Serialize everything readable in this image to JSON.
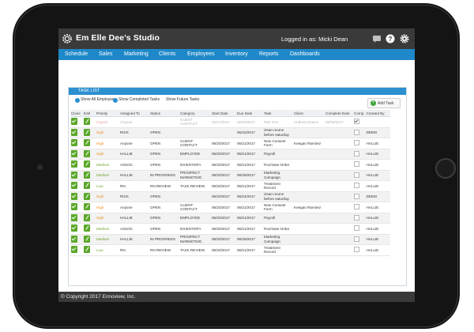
{
  "app": {
    "title": "Em Elle Dee's Studio",
    "logged_in_label": "Logged in as: Micki Dean"
  },
  "nav": [
    "Schedule",
    "Sales",
    "Marketing",
    "Clients",
    "Employees",
    "Inventory",
    "Reports",
    "Dashboards"
  ],
  "panel": {
    "title": "TASK LIST",
    "options": [
      "Show All Employees",
      "Show Completed Tasks",
      "Show Future Tasks"
    ],
    "add_task_label": "Add Task"
  },
  "table": {
    "columns": [
      "Close",
      "Edit",
      "Priority",
      "Assigned To",
      "Status",
      "Category",
      "Start Date",
      "Due Date",
      "Task",
      "Client",
      "Complete Date",
      "Comp.",
      "Created By"
    ],
    "rows": [
      {
        "priority": "Urgent",
        "assigned": "Anyone",
        "status": "",
        "category": "GUEST CONTACT",
        "start": "02/27/2017",
        "due": "02/28/2017",
        "task": "Test One",
        "client": "Andrew Downs",
        "complete": "06/08/2017",
        "comp": true,
        "created": "",
        "faded": true
      },
      {
        "priority": "High",
        "assigned": "RICK",
        "status": "OPEN",
        "category": "",
        "start": "",
        "due": "05/22/2017",
        "task": "clean rooms before saturday",
        "client": "",
        "complete": "",
        "comp": false,
        "created": "DEMO",
        "faded": false
      },
      {
        "priority": "High",
        "assigned": "Anyone",
        "status": "OPEN",
        "category": "CLIENT CONTACT",
        "start": "06/20/2017",
        "due": "06/21/2017",
        "task": "New Consent Form",
        "client": "Keegan Ramirez",
        "complete": "",
        "comp": false,
        "created": "HALLIE",
        "faded": false
      },
      {
        "priority": "High",
        "assigned": "HALLIE",
        "status": "OPEN",
        "category": "EMPLOYEE",
        "start": "06/20/2017",
        "due": "06/21/2017",
        "task": "Payroll",
        "client": "",
        "complete": "",
        "comp": false,
        "created": "HALLIE",
        "faded": false
      },
      {
        "priority": "Medium",
        "assigned": "ASSOC",
        "status": "OPEN",
        "category": "INVENTORY",
        "start": "06/20/2017",
        "due": "06/21/2017",
        "task": "Purchase Order",
        "client": "",
        "complete": "",
        "comp": false,
        "created": "HALLIE",
        "faded": false
      },
      {
        "priority": "Medium",
        "assigned": "HALLIE",
        "status": "IN PROGRESS",
        "category": "PROSPECT MARKETING",
        "start": "06/20/2017",
        "due": "06/29/2017",
        "task": "Marketing Campaign",
        "client": "",
        "complete": "",
        "comp": false,
        "created": "HALLIE",
        "faded": false
      },
      {
        "priority": "Low",
        "assigned": "RN",
        "status": "RN REVIEW",
        "category": "TASK REVIEW",
        "start": "06/20/2017",
        "due": "06/21/2017",
        "task": "Treatment Record",
        "client": "",
        "complete": "",
        "comp": false,
        "created": "HALLIE",
        "faded": false
      },
      {
        "priority": "High",
        "assigned": "RICK",
        "status": "OPEN",
        "category": "",
        "start": "06/20/2017",
        "due": "06/24/2017",
        "task": "clean rooms before saturday",
        "client": "",
        "complete": "",
        "comp": false,
        "created": "DEMO",
        "faded": false
      },
      {
        "priority": "High",
        "assigned": "Anyone",
        "status": "OPEN",
        "category": "CLIENT CONTACT",
        "start": "06/20/2017",
        "due": "06/21/2017",
        "task": "New Consent Form",
        "client": "Keegan Ramirez",
        "complete": "",
        "comp": false,
        "created": "HALLIE",
        "faded": false
      },
      {
        "priority": "High",
        "assigned": "HALLIE",
        "status": "OPEN",
        "category": "EMPLOYEE",
        "start": "06/20/2017",
        "due": "06/21/2017",
        "task": "Payroll",
        "client": "",
        "complete": "",
        "comp": false,
        "created": "HALLIE",
        "faded": false
      },
      {
        "priority": "Medium",
        "assigned": "ASSOC",
        "status": "OPEN",
        "category": "INVENTORY",
        "start": "06/20/2017",
        "due": "06/21/2017",
        "task": "Purchase Order",
        "client": "",
        "complete": "",
        "comp": false,
        "created": "HALLIE",
        "faded": false
      },
      {
        "priority": "Medium",
        "assigned": "HALLIE",
        "status": "IN PROGRESS",
        "category": "PROSPECT MARKETING",
        "start": "06/20/2017",
        "due": "06/29/2017",
        "task": "Marketing Campaign",
        "client": "",
        "complete": "",
        "comp": false,
        "created": "HALLIE",
        "faded": false
      },
      {
        "priority": "Low",
        "assigned": "RN",
        "status": "RN REVIEW",
        "category": "TASK REVIEW",
        "start": "06/20/2017",
        "due": "06/21/2017",
        "task": "Treatment Record",
        "client": "",
        "complete": "",
        "comp": false,
        "created": "HALLIE",
        "faded": false
      }
    ]
  },
  "priority_colors": {
    "Urgent": "#e03c31",
    "High": "#f08c1e",
    "Medium": "#6ea62a",
    "Low": "#6ea62a"
  },
  "icons": {
    "logo": "gear-logo-icon",
    "chat": "chat-icon",
    "help": "help-icon",
    "settings": "gear-icon",
    "close": "checkbox-icon",
    "edit": "edit-icon",
    "add": "plus-icon"
  },
  "footer": {
    "copyright": "© Copyright 2017 Ennoview, Inc."
  }
}
